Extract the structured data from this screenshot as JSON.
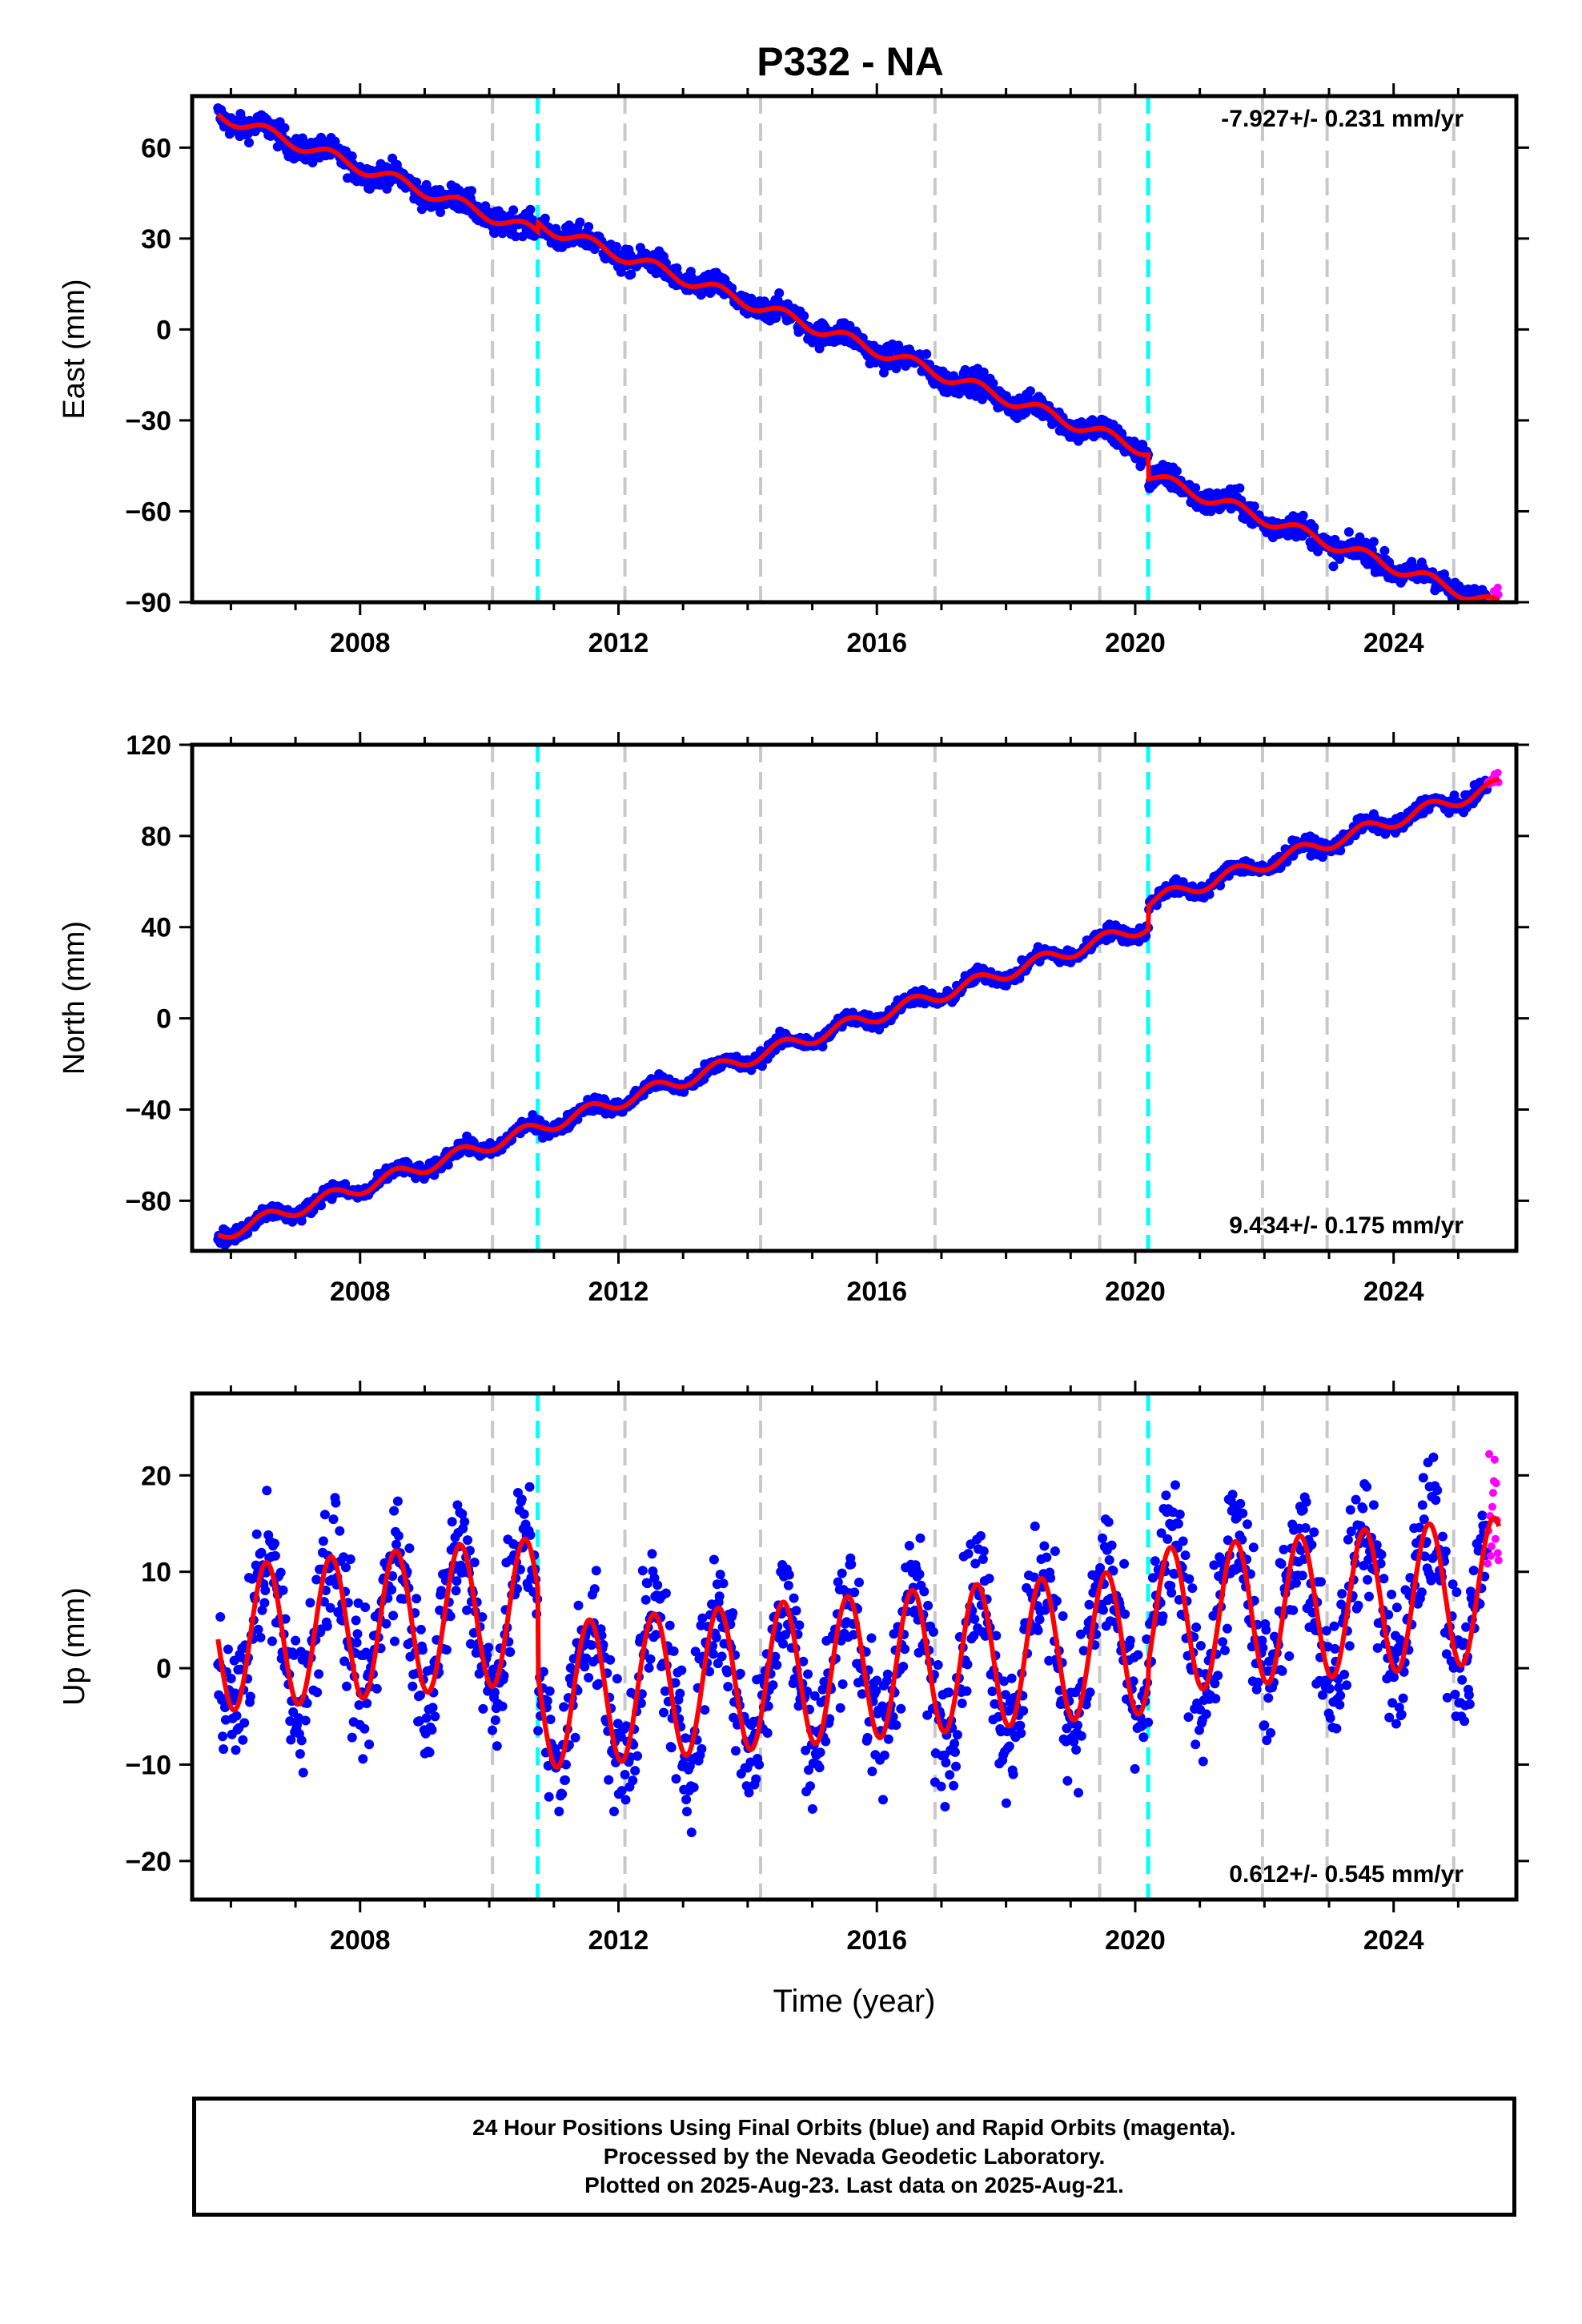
{
  "title": "P332 - NA",
  "chart_data": [
    {
      "type": "scatter",
      "panel": "east",
      "ylabel": "East (mm)",
      "xlabel": "",
      "rate_label": "-7.927+/- 0.231 mm/yr",
      "rate_position": "top-right",
      "xlim": [
        2005.4,
        2025.9
      ],
      "ylim": [
        -90,
        77
      ],
      "yticks": [
        60,
        30,
        0,
        -30,
        -60,
        -90
      ],
      "ytick_labels": [
        "60",
        "30",
        "0",
        "−30",
        "−60",
        "−90"
      ],
      "xticks": [
        2008,
        2012,
        2016,
        2020,
        2024
      ],
      "xtick_labels": [
        "2008",
        "2012",
        "2016",
        "2020",
        "2024"
      ],
      "start_year": 2005.8,
      "end_year": 2025.63,
      "start_value": 71,
      "rate": -7.927,
      "offsets": [
        {
          "year": 2010.75,
          "jump": 3
        },
        {
          "year": 2020.2,
          "jump": -8
        }
      ],
      "seasonal_amplitude": 2,
      "noise": 2,
      "final_series": {
        "name": "final orbits",
        "color": "#0000ff"
      },
      "rapid_series": {
        "name": "rapid orbits",
        "color": "#ff00ff",
        "start_year": 2025.45
      },
      "fit": {
        "name": "model fit",
        "color": "#ff0000"
      },
      "vlines_gray": [
        2010.05,
        2012.1,
        2014.2,
        2016.9,
        2019.45,
        2021.97,
        2022.97,
        2024.93
      ],
      "vlines_cyan": [
        2010.75,
        2020.2
      ]
    },
    {
      "type": "scatter",
      "panel": "north",
      "ylabel": "North (mm)",
      "xlabel": "",
      "rate_label": "9.434+/- 0.175 mm/yr",
      "rate_position": "bottom-right",
      "xlim": [
        2005.4,
        2025.9
      ],
      "ylim": [
        -102,
        120
      ],
      "yticks": [
        120,
        80,
        40,
        0,
        -40,
        -80
      ],
      "ytick_labels": [
        "120",
        "80",
        "40",
        "0",
        "−40",
        "−80"
      ],
      "xticks": [
        2008,
        2012,
        2016,
        2020,
        2024
      ],
      "xtick_labels": [
        "2008",
        "2012",
        "2016",
        "2020",
        "2024"
      ],
      "start_year": 2005.8,
      "end_year": 2025.63,
      "start_value": -95,
      "rate": 9.434,
      "offsets": [
        {
          "year": 2010.75,
          "jump": 0
        },
        {
          "year": 2020.2,
          "jump": 10
        }
      ],
      "seasonal_amplitude": 3,
      "noise": 1.6,
      "final_series": {
        "name": "final orbits",
        "color": "#0000ff"
      },
      "rapid_series": {
        "name": "rapid orbits",
        "color": "#ff00ff",
        "start_year": 2025.45
      },
      "fit": {
        "name": "model fit",
        "color": "#ff0000"
      },
      "vlines_gray": [
        2010.05,
        2012.1,
        2014.2,
        2016.9,
        2019.45,
        2021.97,
        2022.97,
        2024.93
      ],
      "vlines_cyan": [
        2010.75,
        2020.2
      ]
    },
    {
      "type": "scatter",
      "panel": "up",
      "ylabel": "Up (mm)",
      "xlabel": "Time (year)",
      "rate_label": "0.612+/- 0.545 mm/yr",
      "rate_position": "bottom-right",
      "xlim": [
        2005.4,
        2025.9
      ],
      "ylim": [
        -24,
        28.5
      ],
      "yticks": [
        20,
        10,
        0,
        -10,
        -20
      ],
      "ytick_labels": [
        "20",
        "10",
        "0",
        "−10",
        "−20"
      ],
      "xticks": [
        2008,
        2012,
        2016,
        2020,
        2024
      ],
      "xtick_labels": [
        "2008",
        "2012",
        "2016",
        "2020",
        "2024"
      ],
      "start_year": 2005.8,
      "end_year": 2025.63,
      "start_value": 3,
      "rate": 0.612,
      "offsets": [
        {
          "year": 2010.75,
          "jump": -9
        },
        {
          "year": 2020.2,
          "jump": 2
        }
      ],
      "seasonal_amplitude": 7.5,
      "noise": 3.5,
      "final_series": {
        "name": "final orbits",
        "color": "#0000ff"
      },
      "rapid_series": {
        "name": "rapid orbits",
        "color": "#ff00ff",
        "start_year": 2025.45
      },
      "fit": {
        "name": "model fit",
        "color": "#ff0000"
      },
      "vlines_gray": [
        2010.05,
        2012.1,
        2014.2,
        2016.9,
        2019.45,
        2021.97,
        2022.97,
        2024.93
      ],
      "vlines_cyan": [
        2010.75,
        2020.2
      ]
    }
  ],
  "caption": {
    "line1": "24 Hour Positions Using Final Orbits (blue) and Rapid Orbits (magenta).",
    "line2": "Processed by the Nevada Geodetic Laboratory.",
    "line3": "Plotted on 2025-Aug-23. Last data on 2025-Aug-21."
  }
}
